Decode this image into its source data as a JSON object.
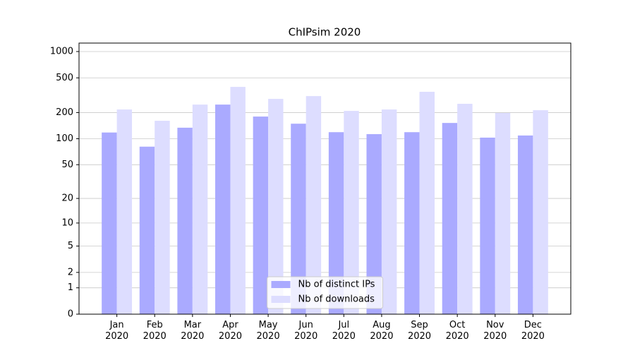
{
  "chart_data": {
    "type": "bar",
    "title": "ChIPsim 2020",
    "categories": [
      "Jan\n2020",
      "Feb\n2020",
      "Mar\n2020",
      "Apr\n2020",
      "May\n2020",
      "Jun\n2020",
      "Jul\n2020",
      "Aug\n2020",
      "Sep\n2020",
      "Oct\n2020",
      "Nov\n2020",
      "Dec\n2020"
    ],
    "series": [
      {
        "name": "Nb of distinct IPs",
        "color": "#aaaaff",
        "values": [
          118,
          81,
          134,
          247,
          180,
          149,
          119,
          113,
          119,
          152,
          103,
          109
        ]
      },
      {
        "name": "Nb of downloads",
        "color": "#ddddff",
        "values": [
          217,
          161,
          247,
          394,
          287,
          309,
          209,
          217,
          346,
          252,
          198,
          213
        ]
      }
    ],
    "yscale": "log1p",
    "ylim": [
      0,
      1250
    ],
    "yticks": [
      0,
      1,
      2,
      5,
      10,
      20,
      50,
      100,
      200,
      500,
      1000
    ],
    "grid": true,
    "legend": "lower center"
  }
}
